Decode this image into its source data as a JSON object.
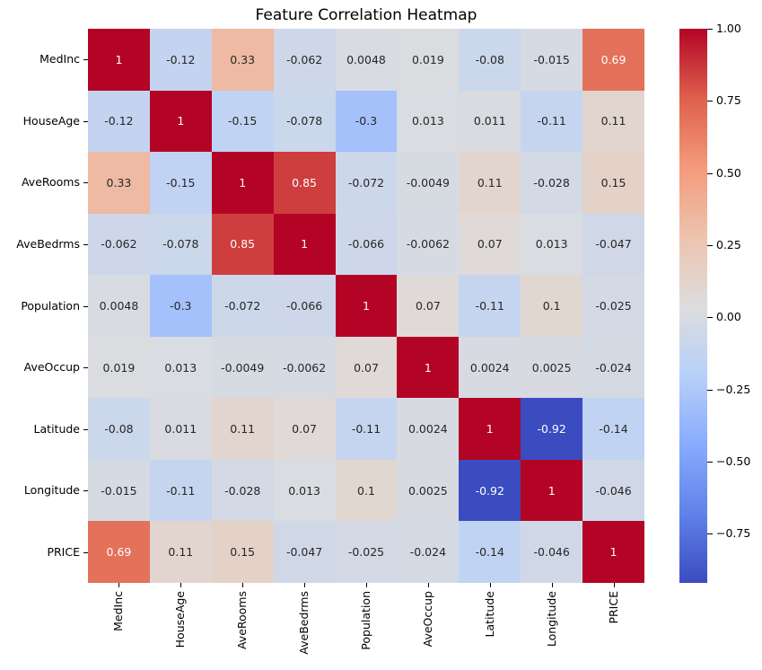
{
  "title": "Feature Correlation Heatmap",
  "chart_data": {
    "type": "heatmap",
    "colormap": "coolwarm",
    "categories": [
      "MedInc",
      "HouseAge",
      "AveRooms",
      "AveBedrms",
      "Population",
      "AveOccup",
      "Latitude",
      "Longitude",
      "PRICE"
    ],
    "values": [
      [
        1,
        -0.12,
        0.33,
        -0.062,
        0.0048,
        0.019,
        -0.08,
        -0.015,
        0.69
      ],
      [
        -0.12,
        1,
        -0.15,
        -0.078,
        -0.3,
        0.013,
        0.011,
        -0.11,
        0.11
      ],
      [
        0.33,
        -0.15,
        1,
        0.85,
        -0.072,
        -0.0049,
        0.11,
        -0.028,
        0.15
      ],
      [
        -0.062,
        -0.078,
        0.85,
        1,
        -0.066,
        -0.0062,
        0.07,
        0.013,
        -0.047
      ],
      [
        0.0048,
        -0.3,
        -0.072,
        -0.066,
        1,
        0.07,
        -0.11,
        0.1,
        -0.025
      ],
      [
        0.019,
        0.013,
        -0.0049,
        -0.0062,
        0.07,
        1,
        0.0024,
        0.0025,
        -0.024
      ],
      [
        -0.08,
        0.011,
        0.11,
        0.07,
        -0.11,
        0.0024,
        1,
        -0.92,
        -0.14
      ],
      [
        -0.015,
        -0.11,
        -0.028,
        0.013,
        0.1,
        0.0025,
        -0.92,
        1,
        -0.046
      ],
      [
        0.69,
        0.11,
        0.15,
        -0.047,
        -0.025,
        -0.024,
        -0.14,
        -0.046,
        1
      ]
    ],
    "annotations": [
      [
        "1",
        "-0.12",
        "0.33",
        "-0.062",
        "0.0048",
        "0.019",
        "-0.08",
        "-0.015",
        "0.69"
      ],
      [
        "-0.12",
        "1",
        "-0.15",
        "-0.078",
        "-0.3",
        "0.013",
        "0.011",
        "-0.11",
        "0.11"
      ],
      [
        "0.33",
        "-0.15",
        "1",
        "0.85",
        "-0.072",
        "-0.0049",
        "0.11",
        "-0.028",
        "0.15"
      ],
      [
        "-0.062",
        "-0.078",
        "0.85",
        "1",
        "-0.066",
        "-0.0062",
        "0.07",
        "0.013",
        "-0.047"
      ],
      [
        "0.0048",
        "-0.3",
        "-0.072",
        "-0.066",
        "1",
        "0.07",
        "-0.11",
        "0.1",
        "-0.025"
      ],
      [
        "0.019",
        "0.013",
        "-0.0049",
        "-0.0062",
        "0.07",
        "1",
        "0.0024",
        "0.0025",
        "-0.024"
      ],
      [
        "-0.08",
        "0.011",
        "0.11",
        "0.07",
        "-0.11",
        "0.0024",
        "1",
        "-0.92",
        "-0.14"
      ],
      [
        "-0.015",
        "-0.11",
        "-0.028",
        "0.013",
        "0.1",
        "0.0025",
        "-0.92",
        "1",
        "-0.046"
      ],
      [
        "0.69",
        "0.11",
        "0.15",
        "-0.047",
        "-0.025",
        "-0.024",
        "-0.14",
        "-0.046",
        "1"
      ]
    ],
    "vmin": -0.92,
    "vmax": 1.0,
    "legend_position": "right-colorbar",
    "grid": false,
    "colorbar_ticks": [
      {
        "label": "1.00",
        "value": 1.0
      },
      {
        "label": "0.75",
        "value": 0.75
      },
      {
        "label": "0.50",
        "value": 0.5
      },
      {
        "label": "0.25",
        "value": 0.25
      },
      {
        "label": "0.00",
        "value": 0.0
      },
      {
        "label": "−0.25",
        "value": -0.25
      },
      {
        "label": "−0.50",
        "value": -0.5
      },
      {
        "label": "−0.75",
        "value": -0.75
      }
    ],
    "colormap_stops": [
      "#3b4cc0",
      "#6082e9",
      "#88abfe",
      "#b8d0f9",
      "#dddddd",
      "#edc3ae",
      "#f49a7b",
      "#de604d",
      "#b40426"
    ],
    "annotation_colors": {
      "on_dark": "#ffffff",
      "on_light": "#262626"
    },
    "background_color": "#ffffff"
  }
}
